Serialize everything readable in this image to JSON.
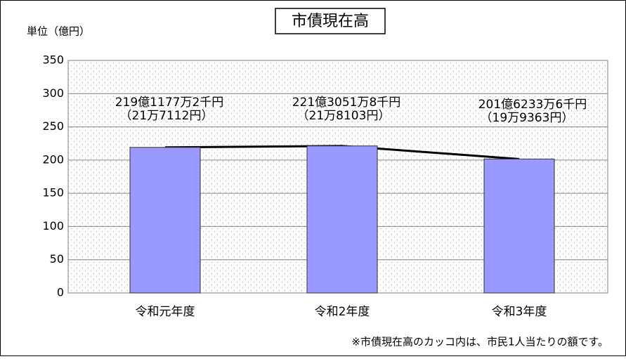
{
  "chart_data": {
    "type": "bar",
    "title": "市債現在高",
    "y_unit_label": "単位（億円）",
    "categories": [
      "令和元年度",
      "令和2年度",
      "令和3年度"
    ],
    "values": [
      219.11772,
      221.30518,
      201.62336
    ],
    "value_labels": [
      "219億1177万2千円",
      "221億3051万8千円",
      "201億6233万6千円"
    ],
    "per_capita_labels": [
      "（21万7112円）",
      "（21万8103円）",
      "（19万9363円）"
    ],
    "color": "#9999ff",
    "line_color": "#000000",
    "ylim": [
      0,
      350
    ],
    "yticks": [
      0,
      50,
      100,
      150,
      200,
      250,
      300,
      350
    ],
    "grid": true,
    "footnote": "※市債現在高のカッコ内は、市民1人当たりの額です。"
  }
}
